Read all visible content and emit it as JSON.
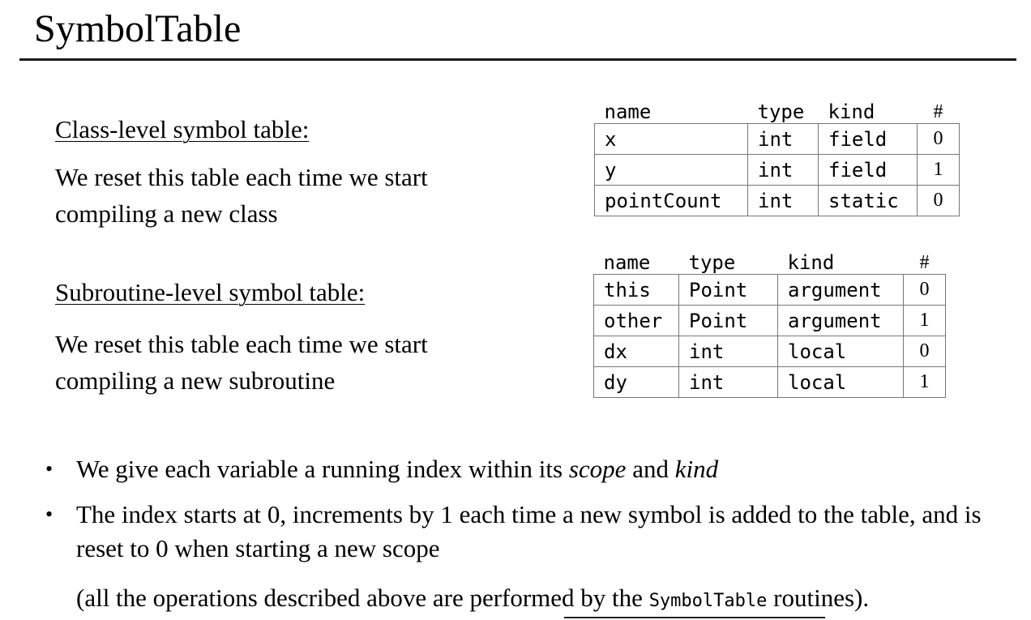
{
  "title": "SymbolTable",
  "class_section": {
    "heading": "Class-level symbol table:",
    "text": "We reset this table each time we start compiling a new class"
  },
  "subroutine_section": {
    "heading": "Subroutine-level symbol table:",
    "text": "We reset this table each time we start compiling a new subroutine"
  },
  "class_table": {
    "headers": [
      "name",
      "type",
      "kind",
      "#"
    ],
    "rows": [
      [
        "x",
        "int",
        "field",
        "0"
      ],
      [
        "y",
        "int",
        "field",
        "1"
      ],
      [
        "pointCount",
        "int",
        "static",
        "0"
      ]
    ]
  },
  "subroutine_table": {
    "headers": [
      "name",
      "type",
      "kind",
      "#"
    ],
    "rows": [
      [
        "this",
        "Point",
        "argument",
        "0"
      ],
      [
        "other",
        "Point",
        "argument",
        "1"
      ],
      [
        "dx",
        "int",
        "local",
        "0"
      ],
      [
        "dy",
        "int",
        "local",
        "1"
      ]
    ]
  },
  "bullets": {
    "b1_pre": "We give each variable a running index within its ",
    "b1_scope": "scope",
    "b1_and": " and ",
    "b1_kind": "kind",
    "b2": "The index starts at 0, increments by 1 each time a new symbol is added to the table, and is reset to 0 when starting a new scope"
  },
  "note": {
    "pre": "(all the operations described above are performed by the ",
    "code": "SymbolTable",
    "post": " routines)."
  }
}
